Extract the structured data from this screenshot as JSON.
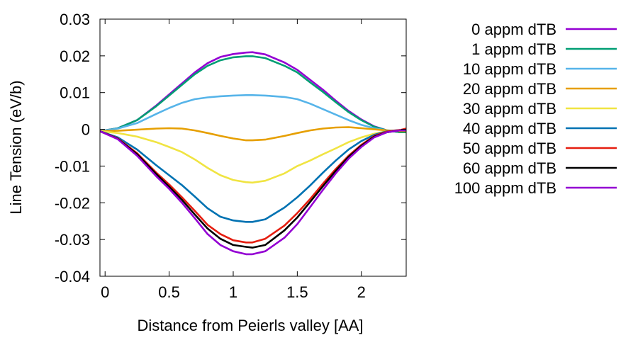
{
  "chart_data": {
    "type": "line",
    "title": "",
    "xlabel": "Distance from Peierls valley [AA]",
    "ylabel": "Line Tension (eV/b)",
    "xlim": [
      -0.04,
      2.35
    ],
    "ylim": [
      -0.04,
      0.03
    ],
    "xticks": [
      0,
      0.5,
      1,
      1.5,
      2
    ],
    "xtick_labels": [
      "0",
      "0.5",
      "1",
      "1.5",
      "2"
    ],
    "yticks": [
      0.03,
      0.02,
      0.01,
      0,
      -0.01,
      -0.02,
      -0.03,
      -0.04
    ],
    "ytick_labels": [
      "0.03",
      "0.02",
      "0.01",
      "0",
      "-0.01",
      "-0.02",
      "-0.03",
      "-0.04"
    ],
    "grid": false,
    "legend_position": "outside-right",
    "x": [
      -0.04,
      0.1,
      0.25,
      0.4,
      0.5,
      0.6,
      0.7,
      0.8,
      0.9,
      1.0,
      1.1,
      1.15,
      1.25,
      1.4,
      1.5,
      1.6,
      1.7,
      1.8,
      1.9,
      2.0,
      2.1,
      2.2,
      2.3,
      2.35
    ],
    "series": [
      {
        "name": "0 appm dTB",
        "color": "#9400d3",
        "values": [
          -0.0005,
          0.0003,
          0.0025,
          0.0065,
          0.0095,
          0.0125,
          0.0155,
          0.018,
          0.0197,
          0.0205,
          0.0209,
          0.021,
          0.0204,
          0.0182,
          0.0162,
          0.0135,
          0.0108,
          0.0078,
          0.005,
          0.0027,
          0.0008,
          -0.0003,
          -0.0008,
          -0.0008
        ]
      },
      {
        "name": "1 appm dTB",
        "color": "#009e73",
        "values": [
          -0.0005,
          0.0003,
          0.0025,
          0.0063,
          0.0092,
          0.0121,
          0.015,
          0.0173,
          0.0188,
          0.0196,
          0.0199,
          0.0199,
          0.0194,
          0.0173,
          0.0155,
          0.0128,
          0.0102,
          0.0074,
          0.0047,
          0.0025,
          0.0007,
          -0.0003,
          -0.0008,
          -0.0008
        ]
      },
      {
        "name": "10 appm dTB",
        "color": "#56b4e9",
        "values": [
          -0.0005,
          0.0002,
          0.0017,
          0.0042,
          0.0058,
          0.0072,
          0.0082,
          0.0087,
          0.009,
          0.0092,
          0.0093,
          0.0093,
          0.0092,
          0.0088,
          0.0082,
          0.007,
          0.0055,
          0.004,
          0.0025,
          0.0012,
          0.0003,
          -0.0003,
          -0.0005,
          -0.0003
        ]
      },
      {
        "name": "20 appm dTB",
        "color": "#e69f00",
        "values": [
          -0.0005,
          -0.0004,
          -0.0001,
          0.0002,
          0.0003,
          0.0002,
          -0.0003,
          -0.001,
          -0.0018,
          -0.0025,
          -0.003,
          -0.003,
          -0.0028,
          -0.0018,
          -0.001,
          -0.0003,
          0.0002,
          0.0005,
          0.0006,
          0.0003,
          0.0,
          -0.0003,
          -0.0005,
          -0.0005
        ]
      },
      {
        "name": "30 appm dTB",
        "color": "#f0e442",
        "values": [
          -0.0005,
          -0.001,
          -0.002,
          -0.0035,
          -0.0048,
          -0.0062,
          -0.0082,
          -0.0105,
          -0.0125,
          -0.0138,
          -0.0144,
          -0.0145,
          -0.014,
          -0.012,
          -0.01,
          -0.0085,
          -0.0068,
          -0.0052,
          -0.0035,
          -0.0022,
          -0.0012,
          -0.0005,
          -0.0003,
          -0.0003
        ]
      },
      {
        "name": "40 appm dTB",
        "color": "#0072b2",
        "values": [
          -0.0005,
          -0.0022,
          -0.0055,
          -0.0098,
          -0.0125,
          -0.0152,
          -0.0183,
          -0.0215,
          -0.0238,
          -0.0248,
          -0.0252,
          -0.0252,
          -0.0245,
          -0.0213,
          -0.0185,
          -0.0153,
          -0.0118,
          -0.0085,
          -0.0055,
          -0.0032,
          -0.0015,
          -0.0005,
          -0.0002,
          -0.0002
        ]
      },
      {
        "name": "50 appm dTB",
        "color": "#e51e10",
        "values": [
          -0.0005,
          -0.0025,
          -0.0065,
          -0.0118,
          -0.015,
          -0.0185,
          -0.0222,
          -0.026,
          -0.0285,
          -0.0302,
          -0.0308,
          -0.0308,
          -0.0298,
          -0.0262,
          -0.0228,
          -0.019,
          -0.0148,
          -0.0108,
          -0.0072,
          -0.0042,
          -0.0018,
          -0.0006,
          -0.0002,
          0.0002
        ]
      },
      {
        "name": "60 appm dTB",
        "color": "#000000",
        "values": [
          -0.0005,
          -0.0026,
          -0.0068,
          -0.0122,
          -0.0156,
          -0.0192,
          -0.0232,
          -0.027,
          -0.0298,
          -0.0315,
          -0.032,
          -0.0322,
          -0.0315,
          -0.0275,
          -0.024,
          -0.0198,
          -0.0155,
          -0.0113,
          -0.0075,
          -0.0045,
          -0.002,
          -0.0008,
          -0.0003,
          -0.0003
        ]
      },
      {
        "name": "100 appm dTB",
        "color": "#9400d3",
        "values": [
          -0.0005,
          -0.0027,
          -0.0072,
          -0.0128,
          -0.0162,
          -0.02,
          -0.0242,
          -0.0285,
          -0.0315,
          -0.0332,
          -0.034,
          -0.034,
          -0.0332,
          -0.0295,
          -0.0258,
          -0.0212,
          -0.0165,
          -0.012,
          -0.008,
          -0.0048,
          -0.0022,
          -0.0008,
          -0.0003,
          -0.0003
        ]
      }
    ]
  }
}
